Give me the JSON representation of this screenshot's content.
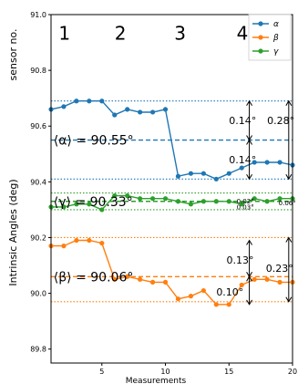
{
  "chart_data": {
    "type": "line",
    "title": "",
    "xlabel": "Measurements",
    "ylabel": "Intrinsic Angles (deg)",
    "top_ylabel": "sensor no.",
    "xlim": [
      1,
      20
    ],
    "ylim": [
      89.75,
      91.0
    ],
    "x_ticks": [
      5,
      10,
      15,
      20
    ],
    "y_ticks": [
      89.8,
      90.0,
      90.2,
      90.4,
      90.6,
      90.8,
      91.0
    ],
    "y_tick_labels": [
      "89.8",
      "90.0",
      "90.2",
      "90.4",
      "90.6",
      "90.8",
      "91.0"
    ],
    "grid": false,
    "legend_position": "top-right",
    "x": [
      1,
      2,
      3,
      4,
      5,
      6,
      7,
      8,
      9,
      10,
      11,
      12,
      13,
      14,
      15,
      16,
      17,
      18,
      19,
      20
    ],
    "series": [
      {
        "name": "α",
        "color": "#1f77b4",
        "values": [
          90.66,
          90.67,
          90.69,
          90.69,
          90.69,
          90.64,
          90.66,
          90.65,
          90.65,
          90.66,
          90.42,
          90.43,
          90.43,
          90.41,
          90.43,
          90.45,
          90.47,
          90.47,
          90.47,
          90.46
        ],
        "mean": 90.55,
        "max": 90.69,
        "min": 90.41
      },
      {
        "name": "β",
        "color": "#ff7f0e",
        "values": [
          90.17,
          90.17,
          90.19,
          90.19,
          90.18,
          90.05,
          90.06,
          90.05,
          90.04,
          90.04,
          89.98,
          89.99,
          90.01,
          89.96,
          89.96,
          90.03,
          90.05,
          90.05,
          90.04,
          90.04
        ],
        "mean": 90.06,
        "max": 90.2,
        "min": 89.97
      },
      {
        "name": "γ",
        "color": "#2ca02c",
        "values": [
          90.31,
          90.31,
          90.32,
          90.32,
          90.3,
          90.35,
          90.35,
          90.34,
          90.34,
          90.34,
          90.33,
          90.32,
          90.33,
          90.33,
          90.33,
          90.32,
          90.34,
          90.33,
          90.34,
          90.34
        ],
        "mean": 90.33,
        "max": 90.36,
        "min": 90.3
      }
    ],
    "sensor_labels": [
      {
        "text": "1",
        "x": 1.6
      },
      {
        "text": "2",
        "x": 6.0
      },
      {
        "text": "3",
        "x": 10.7
      },
      {
        "text": "4",
        "x": 15.6
      }
    ],
    "sensor_label_y": 90.93,
    "sensor_dividers": [
      5.5,
      10.5,
      15.5
    ],
    "mean_labels": [
      {
        "text": "⟨α⟩ = 90.55°",
        "x": 1.2,
        "y": 90.55,
        "color": "#000000"
      },
      {
        "text": "⟨γ⟩ = 90.33°",
        "x": 1.2,
        "y": 90.33,
        "color": "#000000"
      },
      {
        "text": "⟨β⟩ = 90.06°",
        "x": 1.2,
        "y": 90.06,
        "color": "#000000"
      }
    ],
    "annotations": [
      {
        "text": "0.14°",
        "x": 15.0,
        "y": 90.62
      },
      {
        "text": "0.28°",
        "x": 18.0,
        "y": 90.62
      },
      {
        "text": "0.14°",
        "x": 15.0,
        "y": 90.48
      },
      {
        "text": "0.02°",
        "x": 15.6,
        "y": 90.335
      },
      {
        "text": "0.03°",
        "x": 15.6,
        "y": 90.315
      },
      {
        "text": "0.06°",
        "x": 18.9,
        "y": 90.33
      },
      {
        "text": "0.13°",
        "x": 14.8,
        "y": 90.12
      },
      {
        "text": "0.23°",
        "x": 17.9,
        "y": 90.09
      },
      {
        "text": "0.10°",
        "x": 14.0,
        "y": 90.005
      }
    ],
    "arrows": [
      {
        "x": 16.6,
        "y1": 90.69,
        "y2": 90.55
      },
      {
        "x": 16.6,
        "y1": 90.55,
        "y2": 90.41
      },
      {
        "x": 19.7,
        "y1": 90.69,
        "y2": 90.41
      },
      {
        "x": 16.6,
        "y1": 90.19,
        "y2": 90.06
      },
      {
        "x": 16.6,
        "y1": 90.06,
        "y2": 89.96
      },
      {
        "x": 19.7,
        "y1": 90.2,
        "y2": 89.97
      }
    ]
  }
}
